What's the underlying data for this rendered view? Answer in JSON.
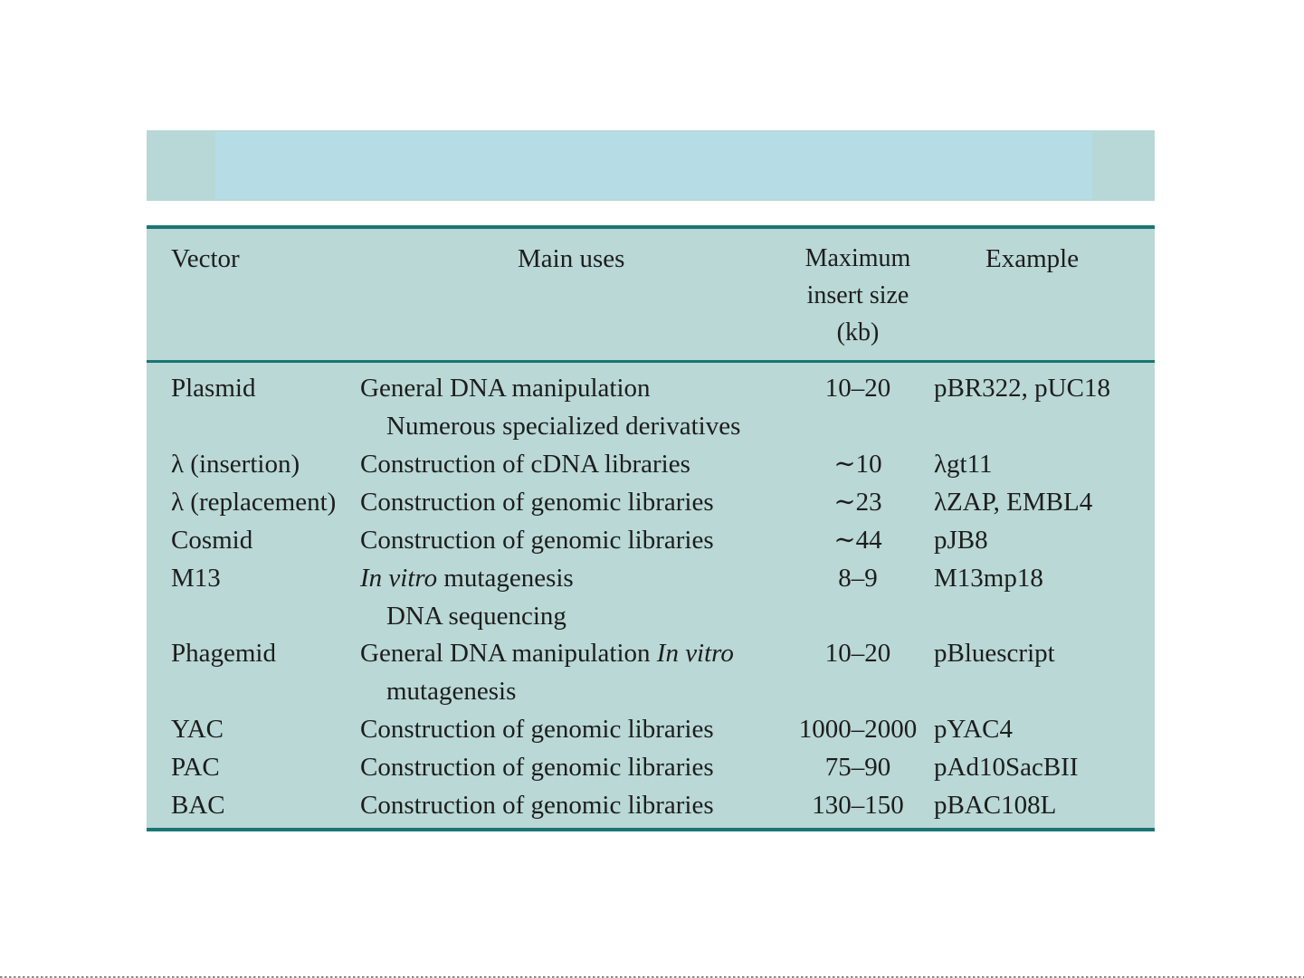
{
  "header": {
    "vector": "Vector",
    "main_uses": "Main uses",
    "max_insert_line1": "Maximum",
    "max_insert_line2": "insert size",
    "max_insert_line3": "(kb)",
    "example": "Example"
  },
  "rows": [
    {
      "vector": "Plasmid",
      "uses1": "General DNA manipulation",
      "uses2": "Numerous specialized derivatives",
      "size": "10–20",
      "example": "pBR322, pUC18"
    },
    {
      "vector": "λ (insertion)",
      "uses1": "Construction of cDNA libraries",
      "size": "∼10",
      "example": "λgt11"
    },
    {
      "vector": "λ (replacement)",
      "uses1": "Construction of genomic libraries",
      "size": "∼23",
      "example": "λZAP, EMBL4"
    },
    {
      "vector": "Cosmid",
      "uses1": "Construction of genomic libraries",
      "size": "∼44",
      "example": "pJB8"
    },
    {
      "vector": "M13",
      "uses1_italic": "In vitro",
      "uses1_rest": " mutagenesis",
      "uses2": "DNA sequencing",
      "size": "8–9",
      "example": "M13mp18"
    },
    {
      "vector": "Phagemid",
      "uses1_start": "General DNA manipulation ",
      "uses1_italic": "In vitro",
      "uses2": "mutagenesis",
      "size": "10–20",
      "example": "pBluescript"
    },
    {
      "vector": "YAC",
      "uses1": "Construction of genomic libraries",
      "size": "1000–2000",
      "example": "pYAC4"
    },
    {
      "vector": "PAC",
      "uses1": "Construction of genomic libraries",
      "size": "75–90",
      "example": "pAd10SacBII"
    },
    {
      "vector": "BAC",
      "uses1": "Construction of genomic libraries",
      "size": "130–150",
      "example": "pBAC108L"
    }
  ]
}
